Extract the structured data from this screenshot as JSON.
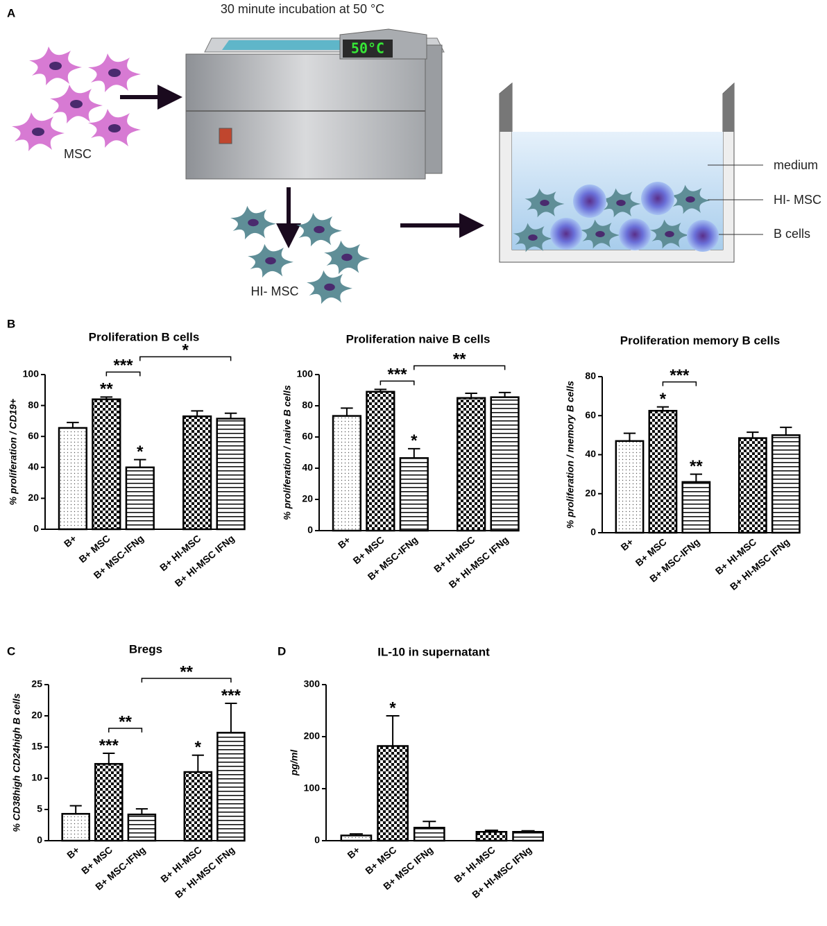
{
  "diagram": {
    "label": "A",
    "title": "30 minute incubation at 50 °C",
    "display": "50°C",
    "cells_label": "MSC",
    "heated_label": "HI- MSC",
    "legend": [
      "medium",
      "HI- MSC",
      "B cells"
    ]
  },
  "panel_labels": [
    "B",
    "C",
    "D"
  ],
  "chart_data": [
    {
      "type": "bar",
      "title": "Proliferation B cells",
      "y_label": "% proliferation / CD19+",
      "categories": [
        "B+",
        "B+ MSC",
        "B+ MSC-IFNg",
        "B+ HI-MSC",
        "B+ HI-MSC IFNg"
      ],
      "values": [
        65.5,
        84,
        40,
        73,
        71.5
      ],
      "errors": [
        3.5,
        1.5,
        5,
        3.5,
        3.5
      ],
      "patterns": [
        "dots",
        "checker",
        "hlines",
        "checker",
        "hlines"
      ],
      "stars": [
        null,
        "**",
        "*",
        null,
        null
      ],
      "brackets": [
        {
          "from": 1,
          "to": 2,
          "label": "***"
        },
        {
          "from": 2,
          "to": 4,
          "label": "*"
        }
      ],
      "ylim": [
        0,
        100
      ],
      "yticks": [
        0,
        20,
        40,
        60,
        80,
        100
      ]
    },
    {
      "type": "bar",
      "title": "Proliferation naive B cells",
      "y_label": "% proliferation / naive B cells",
      "categories": [
        "B+",
        "B+ MSC",
        "B+ MSC-IFNg",
        "B+ HI-MSC",
        "B+ HI-MSC IFNg"
      ],
      "values": [
        73.5,
        89,
        46.5,
        85,
        85.5
      ],
      "errors": [
        5,
        1.5,
        6,
        3,
        3
      ],
      "patterns": [
        "dots",
        "checker",
        "hlines",
        "checker",
        "hlines"
      ],
      "stars": [
        null,
        null,
        "*",
        null,
        null
      ],
      "brackets": [
        {
          "from": 1,
          "to": 2,
          "label": "***"
        },
        {
          "from": 2,
          "to": 4,
          "label": "**"
        }
      ],
      "ylim": [
        0,
        100
      ],
      "yticks": [
        0,
        20,
        40,
        60,
        80,
        100
      ]
    },
    {
      "type": "bar",
      "title": "Proliferation memory B cells",
      "y_label": "% proliferation / memory B cells",
      "categories": [
        "B+",
        "B+ MSC",
        "B+ MSC-IFNg",
        "B+ HI-MSC",
        "B+ HI-MSC IFNg"
      ],
      "values": [
        47,
        62.5,
        26,
        48.5,
        50
      ],
      "errors": [
        4,
        2,
        4,
        3,
        4
      ],
      "patterns": [
        "dots",
        "checker",
        "hlines",
        "checker",
        "hlines"
      ],
      "stars": [
        null,
        "*",
        "**",
        null,
        null
      ],
      "brackets": [
        {
          "from": 1,
          "to": 2,
          "label": "***"
        }
      ],
      "ylim": [
        0,
        80
      ],
      "yticks": [
        0,
        20,
        40,
        60,
        80
      ]
    },
    {
      "type": "bar",
      "title": "Bregs",
      "y_label": "% CD38high CD24high B cells",
      "categories": [
        "B+",
        "B+ MSC",
        "B+ MSC-IFNg",
        "B+ HI-MSC",
        "B+ HI-MSC IFNg"
      ],
      "values": [
        4.3,
        12.3,
        4.2,
        11,
        17.3
      ],
      "errors": [
        1.3,
        1.7,
        0.9,
        2.7,
        4.7
      ],
      "patterns": [
        "dots",
        "checker",
        "hlines",
        "checker",
        "hlines"
      ],
      "stars": [
        null,
        "***",
        null,
        "*",
        "***"
      ],
      "brackets": [
        {
          "from": 1,
          "to": 2,
          "label": "**"
        },
        {
          "from": 2,
          "to": 4,
          "label": "**"
        }
      ],
      "ylim": [
        0,
        25
      ],
      "yticks": [
        0,
        5,
        10,
        15,
        20,
        25
      ]
    },
    {
      "type": "bar",
      "title": "IL-10 in supernatant",
      "y_label": "pg/ml",
      "categories": [
        "B+",
        "B+ MSC",
        "B+ MSC IFNg",
        "B+ HI-MSC",
        "B+ HI-MSC IFNg"
      ],
      "values": [
        10,
        182,
        25,
        17,
        17
      ],
      "errors": [
        3,
        58,
        12,
        3,
        2
      ],
      "patterns": [
        "dots",
        "checker",
        "hlines",
        "checker",
        "hlines"
      ],
      "stars": [
        null,
        "*",
        null,
        null,
        null
      ],
      "brackets": [],
      "ylim": [
        0,
        300
      ],
      "yticks": [
        0,
        100,
        200,
        300
      ]
    }
  ]
}
